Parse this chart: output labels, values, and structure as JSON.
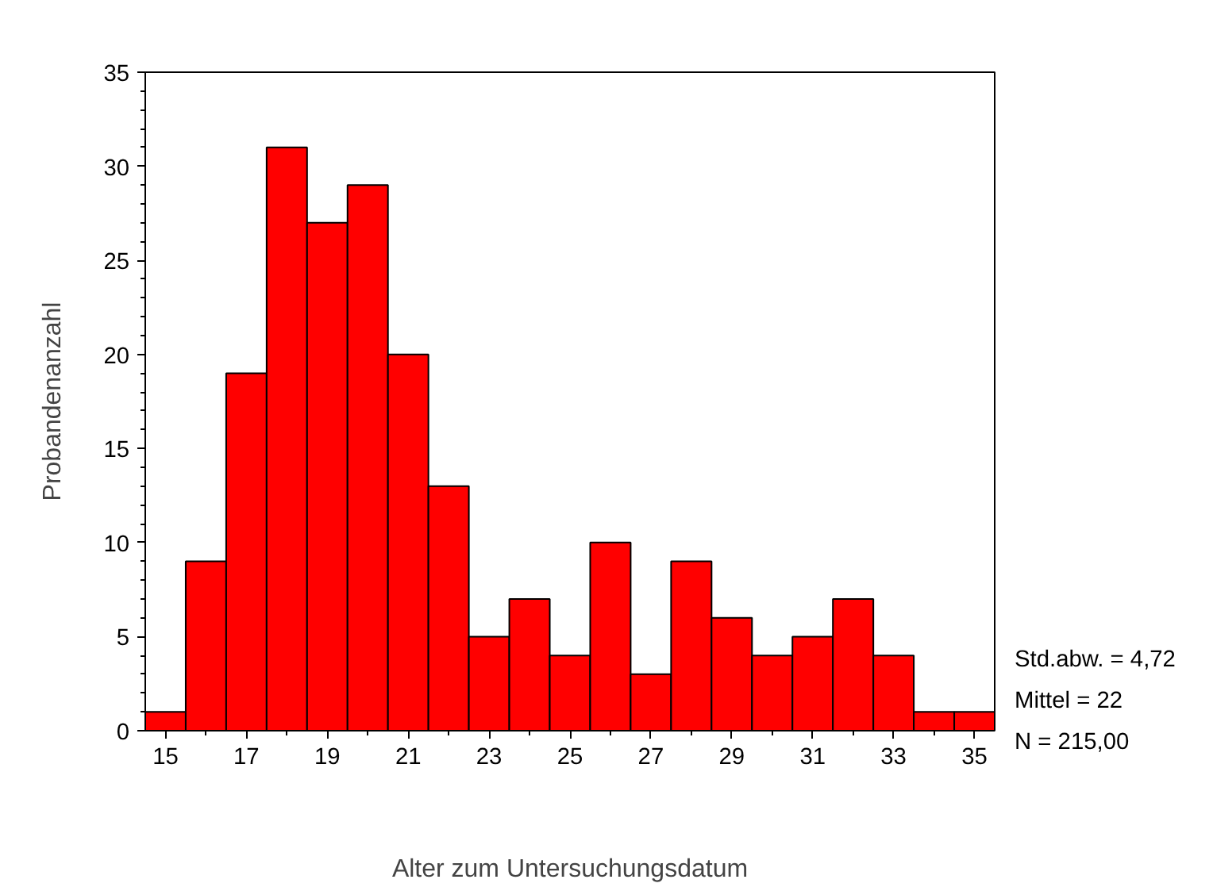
{
  "chart_data": {
    "type": "histogram",
    "xlabel": "Alter zum Untersuchungsdatum",
    "ylabel": "Probandenanzahl",
    "bins": [
      14.5,
      15.5,
      16.5,
      17.5,
      18.5,
      19.5,
      20.5,
      21.5,
      22.5,
      23.5,
      24.5,
      25.5,
      26.5,
      27.5,
      28.5,
      29.5,
      30.5,
      31.5,
      32.5,
      33.5,
      34.5,
      35.5
    ],
    "values": [
      1,
      9,
      19,
      31,
      27,
      29,
      20,
      13,
      5,
      7,
      4,
      10,
      3,
      9,
      6,
      4,
      5,
      7,
      4,
      1,
      1
    ],
    "color": "#ff0000",
    "xlim": [
      14.5,
      35.5
    ],
    "ylim": [
      0,
      35
    ],
    "xticks": [
      15,
      17,
      19,
      21,
      23,
      25,
      27,
      29,
      31,
      33,
      35
    ],
    "yticks": [
      0,
      5,
      10,
      15,
      20,
      25,
      30,
      35
    ],
    "grid": false,
    "annotations": [
      "Std.abw. = 4,72",
      "Mittel = 22",
      "N = 215,00"
    ]
  }
}
